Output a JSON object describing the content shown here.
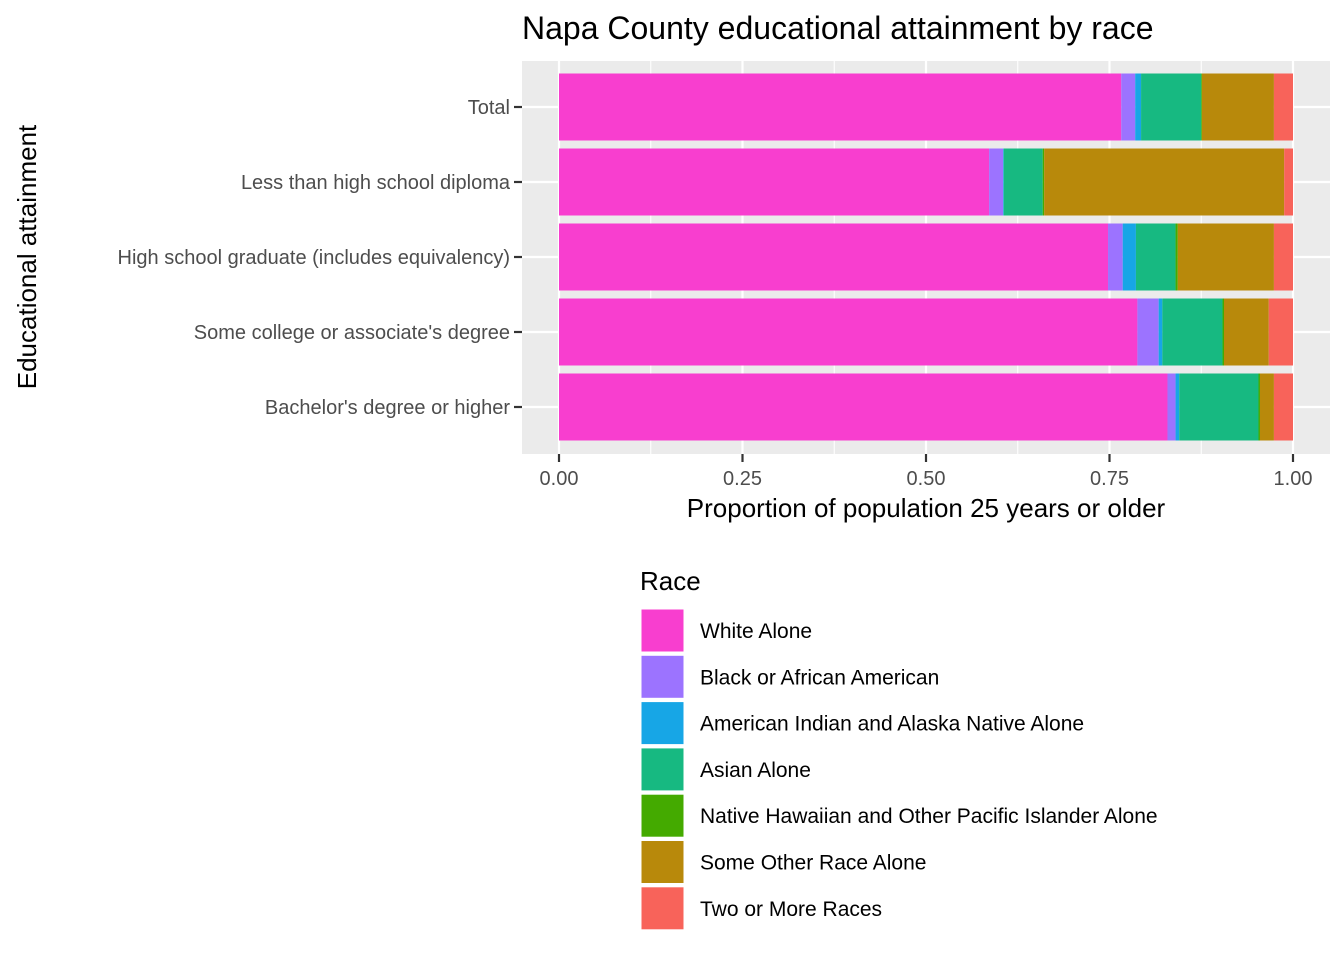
{
  "chart_data": {
    "type": "bar",
    "orientation": "horizontal",
    "stacked": true,
    "title": "Napa County educational attainment by race",
    "xlabel": "Proportion of population 25 years or older",
    "ylabel": "Educational attainment",
    "xlim": [
      0,
      1
    ],
    "x_ticks": [
      "0.00",
      "0.25",
      "0.50",
      "0.75",
      "1.00"
    ],
    "x_tick_values": [
      0,
      0.25,
      0.5,
      0.75,
      1
    ],
    "grid": true,
    "legend_position": "bottom",
    "legend_title": "Race",
    "categories": [
      "Total",
      "Less than high school diploma",
      "High school graduate (includes equivalency)",
      "Some college or associate's degree",
      "Bachelor's degree or higher"
    ],
    "series": [
      {
        "name": "White Alone",
        "color": "#F83ECF",
        "values": [
          0.766,
          0.586,
          0.748,
          0.788,
          0.829
        ]
      },
      {
        "name": "Black or African American",
        "color": "#9C73FF",
        "values": [
          0.019,
          0.019,
          0.02,
          0.029,
          0.011
        ]
      },
      {
        "name": "American Indian and Alaska Native Alone",
        "color": "#17A6E6",
        "values": [
          0.008,
          0.001,
          0.018,
          0.005,
          0.005
        ]
      },
      {
        "name": "Asian Alone",
        "color": "#17B981",
        "values": [
          0.082,
          0.053,
          0.054,
          0.082,
          0.108
        ]
      },
      {
        "name": "Native Hawaiian and Other Pacific Islander Alone",
        "color": "#44AA00",
        "values": [
          0.001,
          0.002,
          0.003,
          0.002,
          0.002
        ]
      },
      {
        "name": "Some Other Race Alone",
        "color": "#B8890B",
        "values": [
          0.098,
          0.327,
          0.131,
          0.061,
          0.019
        ]
      },
      {
        "name": "Two or More Races",
        "color": "#F8635A",
        "values": [
          0.026,
          0.012,
          0.026,
          0.033,
          0.026
        ]
      }
    ]
  }
}
